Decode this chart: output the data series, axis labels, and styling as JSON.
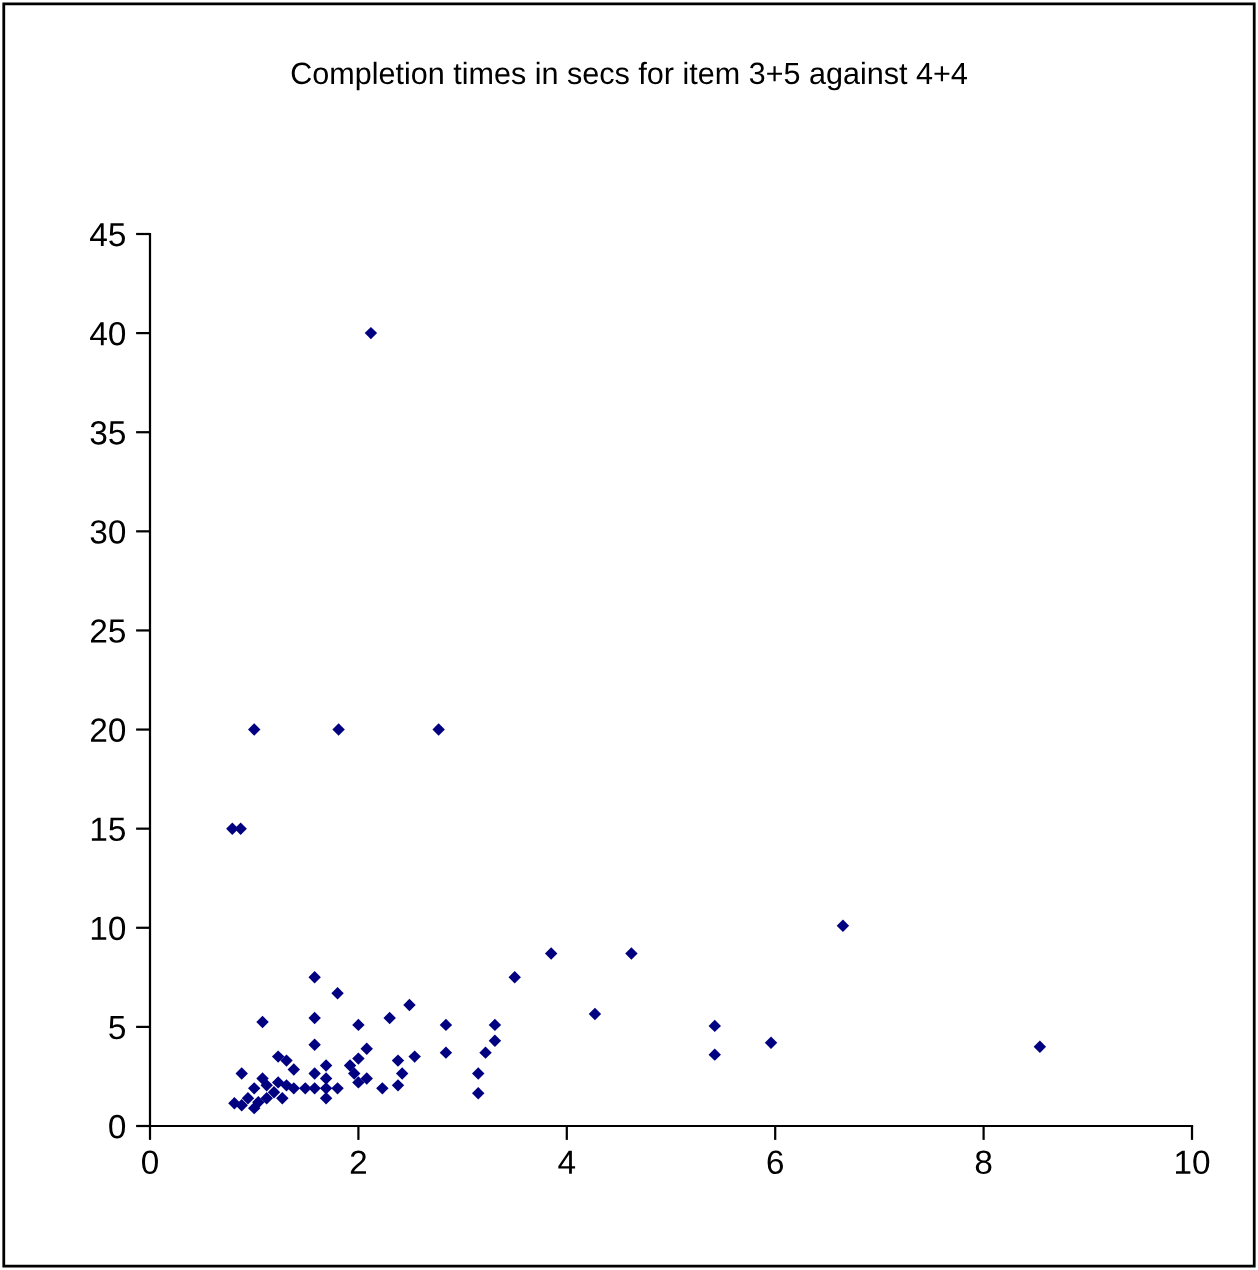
{
  "chart_data": {
    "type": "scatter",
    "title": "Completion times in secs for item 3+5 against 4+4",
    "marker": "diamond",
    "grid": false,
    "legend": false,
    "xlim": [
      0,
      10
    ],
    "xticks": [
      0,
      2,
      4,
      6,
      8,
      10
    ],
    "ylim": [
      0,
      45
    ],
    "yticks": [
      0,
      5,
      10,
      15,
      20,
      25,
      30,
      35,
      40,
      45
    ],
    "series": [
      {
        "color": "#000080",
        "x": [
          2.12,
          1.0,
          1.81,
          2.77,
          0.79,
          0.87,
          3.85,
          4.62,
          4.27,
          5.42,
          5.42,
          5.96,
          6.65,
          8.54,
          1.58,
          1.8,
          3.5,
          1.08,
          1.58,
          2.0,
          2.3,
          2.49,
          2.84,
          3.31,
          3.31,
          2.84,
          3.22,
          3.15,
          3.15,
          1.58,
          2.08,
          2.0,
          1.92,
          2.54,
          2.38,
          2.42,
          2.38,
          2.23,
          2.0,
          1.96,
          2.08,
          1.69,
          1.69,
          1.69,
          1.69,
          1.8,
          1.58,
          1.58,
          1.49,
          1.23,
          1.31,
          1.38,
          0.88,
          1.08,
          1.23,
          1.12,
          1.31,
          1.38,
          1.19,
          1.0,
          1.27,
          1.12,
          1.04,
          0.94,
          0.81,
          0.88,
          1.0
        ],
        "values": [
          40,
          20,
          20,
          20,
          15,
          15,
          8.7,
          8.7,
          5.65,
          5.05,
          3.6,
          4.2,
          10.1,
          4.0,
          7.5,
          6.7,
          7.5,
          5.25,
          5.45,
          5.1,
          5.45,
          6.1,
          5.1,
          5.1,
          4.3,
          3.7,
          3.7,
          2.65,
          1.65,
          4.1,
          3.9,
          3.4,
          3.05,
          3.5,
          3.3,
          2.65,
          2.05,
          1.9,
          2.2,
          2.65,
          2.4,
          3.05,
          2.4,
          1.9,
          1.4,
          1.9,
          2.65,
          1.9,
          1.9,
          3.5,
          3.3,
          2.85,
          2.65,
          2.4,
          2.2,
          2.05,
          2.05,
          1.9,
          1.7,
          1.9,
          1.4,
          1.4,
          1.2,
          1.4,
          1.15,
          1.05,
          0.9
        ]
      }
    ]
  }
}
